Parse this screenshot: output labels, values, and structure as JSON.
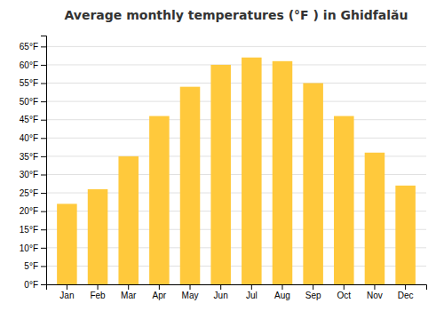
{
  "chart_data": {
    "type": "bar",
    "title": "Average monthly temperatures (°F ) in Ghidfalău",
    "categories": [
      "Jan",
      "Feb",
      "Mar",
      "Apr",
      "May",
      "Jun",
      "Jul",
      "Aug",
      "Sep",
      "Oct",
      "Nov",
      "Dec"
    ],
    "values": [
      22,
      26,
      35,
      46,
      54,
      60,
      62,
      61,
      55,
      46,
      36,
      27
    ],
    "color": "#FFC93C",
    "ylim": [
      0,
      68
    ],
    "yticks": [
      {
        "value": 0,
        "label": "0°F"
      },
      {
        "value": 5,
        "label": "5°F"
      },
      {
        "value": 10,
        "label": "10°F"
      },
      {
        "value": 15,
        "label": "15°F"
      },
      {
        "value": 20,
        "label": "20°F"
      },
      {
        "value": 25,
        "label": "25°F"
      },
      {
        "value": 30,
        "label": "30°F"
      },
      {
        "value": 35,
        "label": "35°F"
      },
      {
        "value": 40,
        "label": "40°F"
      },
      {
        "value": 45,
        "label": "45°F"
      },
      {
        "value": 50,
        "label": "50°F"
      },
      {
        "value": 55,
        "label": "55°F"
      },
      {
        "value": 60,
        "label": "60°F"
      },
      {
        "value": 65,
        "label": "65°F"
      }
    ],
    "grid": true
  }
}
